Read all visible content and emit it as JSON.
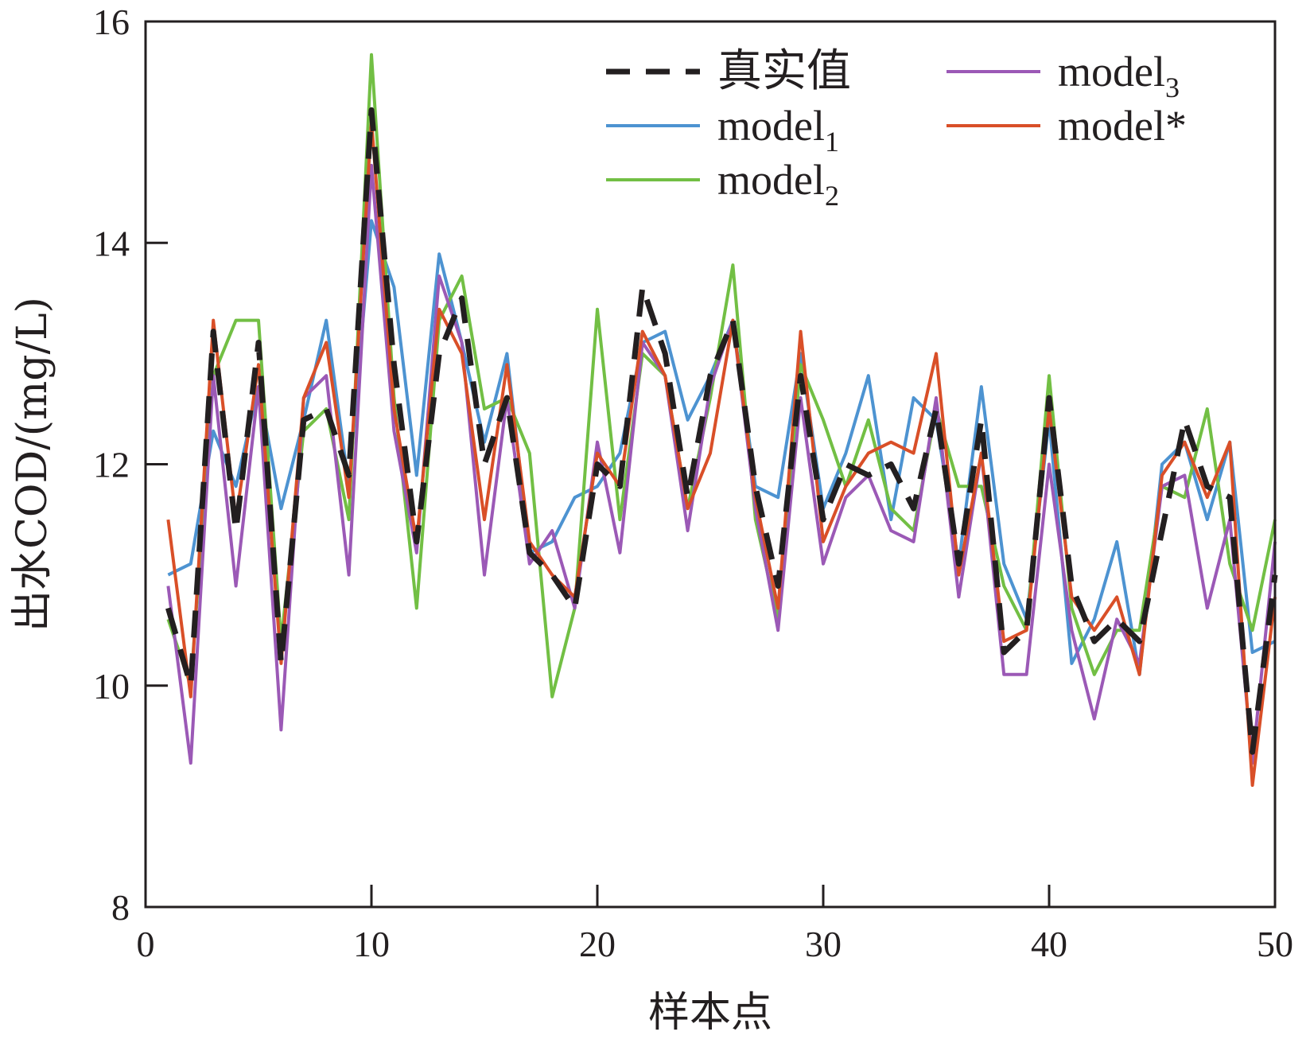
{
  "chart_data": {
    "type": "line",
    "title": "",
    "xlabel": "样本点",
    "ylabel": "出水COD/(mg/L)",
    "xlim": [
      0,
      50
    ],
    "ylim": [
      8,
      16
    ],
    "xticks": [
      0,
      10,
      20,
      30,
      40,
      50
    ],
    "yticks": [
      8,
      10,
      12,
      14,
      16
    ],
    "xtick_labels": [
      "0",
      "10",
      "20",
      "30",
      "40",
      "50"
    ],
    "ytick_labels": [
      "8",
      "10",
      "12",
      "14",
      "16"
    ],
    "grid": false,
    "legend_position": "top-right",
    "x": [
      1,
      2,
      3,
      4,
      5,
      6,
      7,
      8,
      9,
      10,
      11,
      12,
      13,
      14,
      15,
      16,
      17,
      18,
      19,
      20,
      21,
      22,
      23,
      24,
      25,
      26,
      27,
      28,
      29,
      30,
      31,
      32,
      33,
      34,
      35,
      36,
      37,
      38,
      39,
      40,
      41,
      42,
      43,
      44,
      45,
      46,
      47,
      48,
      49,
      50
    ],
    "series": [
      {
        "name": "真实值",
        "label_main": "真实值",
        "label_sub": "",
        "color": "#231f20",
        "dashed": true,
        "values": [
          10.7,
          10.0,
          13.2,
          11.4,
          13.1,
          10.2,
          12.4,
          12.5,
          11.9,
          15.2,
          12.9,
          11.3,
          13.0,
          13.5,
          12.0,
          12.6,
          11.2,
          11.0,
          10.7,
          12.0,
          11.8,
          13.6,
          13.0,
          11.7,
          12.8,
          13.3,
          11.8,
          10.9,
          12.8,
          11.5,
          12.0,
          11.9,
          12.0,
          11.6,
          12.5,
          11.1,
          12.4,
          10.3,
          10.5,
          12.6,
          10.9,
          10.4,
          10.6,
          10.4,
          11.4,
          12.4,
          11.8,
          11.7,
          9.4,
          11.0
        ]
      },
      {
        "name": "model1",
        "label_main": "model",
        "label_sub": "1",
        "color": "#4d93d1",
        "dashed": false,
        "values": [
          11.0,
          11.1,
          12.3,
          11.8,
          12.7,
          11.6,
          12.4,
          13.3,
          11.8,
          14.2,
          13.6,
          11.9,
          13.9,
          13.1,
          12.2,
          13.0,
          11.2,
          11.3,
          11.7,
          11.8,
          12.1,
          13.1,
          13.2,
          12.4,
          12.8,
          13.3,
          11.8,
          11.7,
          13.0,
          11.6,
          12.1,
          12.8,
          11.5,
          12.6,
          12.4,
          11.1,
          12.7,
          11.1,
          10.6,
          12.4,
          10.2,
          10.6,
          11.3,
          10.1,
          12.0,
          12.2,
          11.5,
          12.2,
          10.3,
          10.4
        ]
      },
      {
        "name": "model2",
        "label_main": "model",
        "label_sub": "2",
        "color": "#72bf44",
        "dashed": false,
        "values": [
          10.6,
          10.0,
          12.8,
          13.3,
          13.3,
          10.4,
          12.3,
          12.5,
          11.5,
          15.7,
          12.6,
          10.7,
          13.3,
          13.7,
          12.5,
          12.6,
          12.1,
          9.9,
          10.7,
          13.4,
          11.5,
          13.0,
          12.8,
          11.6,
          12.6,
          13.8,
          11.5,
          10.6,
          12.9,
          12.4,
          11.8,
          12.4,
          11.6,
          11.4,
          12.5,
          11.8,
          11.8,
          10.9,
          10.5,
          12.8,
          10.7,
          10.1,
          10.5,
          10.5,
          11.8,
          11.7,
          12.5,
          11.1,
          10.5,
          11.5
        ]
      },
      {
        "name": "model3",
        "label_main": "model",
        "label_sub": "3",
        "color": "#9b59b6",
        "dashed": false,
        "values": [
          10.9,
          9.3,
          12.8,
          10.9,
          12.7,
          9.6,
          12.6,
          12.8,
          11.0,
          14.7,
          12.3,
          11.2,
          13.7,
          13.1,
          11.0,
          12.6,
          11.1,
          11.4,
          10.7,
          12.2,
          11.2,
          13.1,
          12.8,
          11.4,
          12.7,
          13.3,
          11.6,
          10.5,
          12.6,
          11.1,
          11.7,
          11.9,
          11.4,
          11.3,
          12.6,
          10.8,
          12.1,
          10.1,
          10.1,
          12.0,
          10.5,
          9.7,
          10.6,
          10.2,
          11.8,
          11.9,
          10.7,
          11.5,
          9.3,
          11.3
        ]
      },
      {
        "name": "model*",
        "label_main": "model*",
        "label_sub": "",
        "color": "#d94f28",
        "dashed": false,
        "values": [
          11.5,
          9.9,
          13.3,
          11.5,
          12.9,
          10.2,
          12.6,
          13.1,
          11.7,
          15.1,
          12.5,
          11.3,
          13.4,
          13.0,
          11.5,
          12.9,
          11.3,
          11.0,
          10.8,
          12.1,
          11.8,
          13.2,
          12.8,
          11.6,
          12.1,
          13.3,
          11.7,
          10.7,
          13.2,
          11.3,
          11.8,
          12.1,
          12.2,
          12.1,
          13.0,
          11.0,
          12.1,
          10.4,
          10.5,
          12.5,
          10.8,
          10.5,
          10.8,
          10.1,
          11.9,
          12.2,
          11.7,
          12.2,
          9.1,
          10.8
        ]
      }
    ]
  }
}
